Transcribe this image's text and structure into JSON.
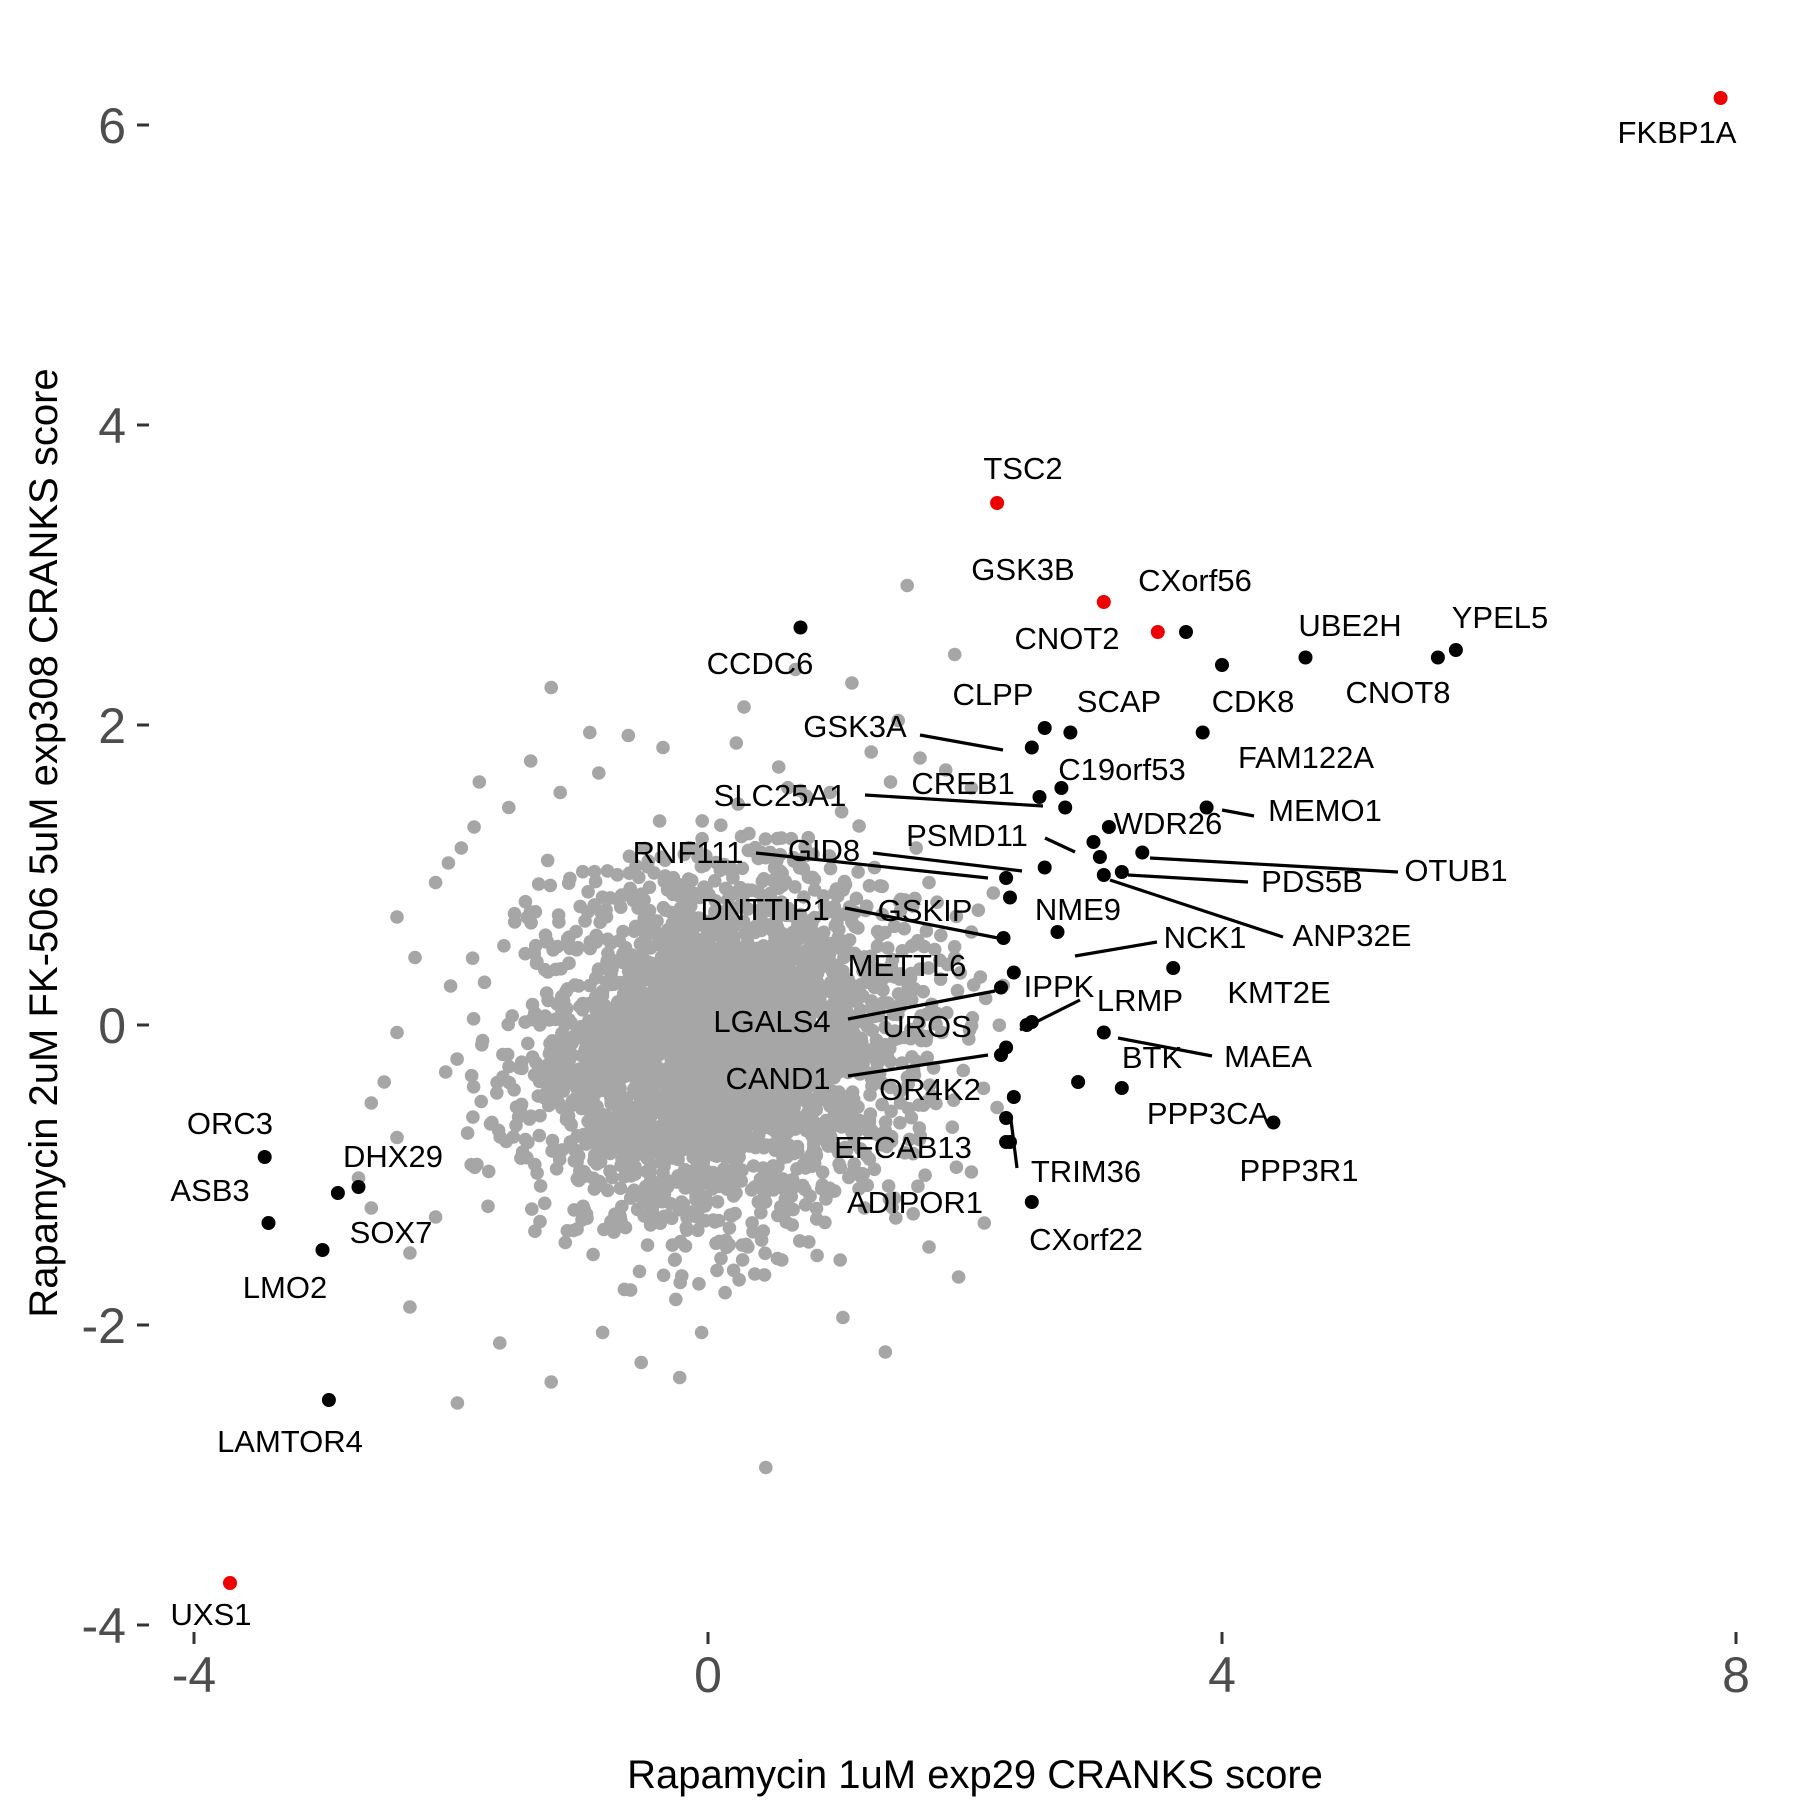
{
  "chart_data": {
    "type": "scatter",
    "title": "",
    "xlabel": "Rapamycin 1uM exp29 CRANKS score",
    "ylabel": "Rapamycin 2uM FK-506 5uM exp308 CRANKS score",
    "xlim": [
      -4.3,
      8.3
    ],
    "ylim": [
      -4.2,
      6.5
    ],
    "xticks": [
      -4,
      0,
      4,
      8
    ],
    "yticks": [
      -4,
      -2,
      0,
      2,
      4,
      6
    ],
    "xtick_labels": [
      "-4",
      "0",
      "4",
      "8"
    ],
    "ytick_labels": [
      "-4",
      "-2",
      "0",
      "2",
      "4",
      "6"
    ],
    "grid": false,
    "legend": "none",
    "colors": {
      "background_points": "#a6a6a6",
      "highlight": "#ee0000",
      "labeled": "#000000"
    },
    "background_cloud": {
      "note_count": "dense cloud of unlabeled genes",
      "center": [
        0.1,
        -0.15
      ],
      "outliers": [
        [
          1.55,
          2.93
        ],
        [
          1.92,
          2.47
        ],
        [
          0.68,
          2.37
        ],
        [
          -1.22,
          2.25
        ],
        [
          -0.62,
          1.93
        ],
        [
          -1.78,
          1.62
        ],
        [
          -1.38,
          1.76
        ],
        [
          1.48,
          2.03
        ],
        [
          1.27,
          1.82
        ],
        [
          1.65,
          1.78
        ],
        [
          1.85,
          1.7
        ],
        [
          2.05,
          1.58
        ],
        [
          1.42,
          1.62
        ],
        [
          1.62,
          1.18
        ],
        [
          1.72,
          0.95
        ],
        [
          2.05,
          0.62
        ],
        [
          2.12,
          0.32
        ],
        [
          2.25,
          -0.55
        ],
        [
          2.05,
          -0.98
        ],
        [
          2.15,
          -1.32
        ],
        [
          1.95,
          -1.68
        ],
        [
          1.38,
          -2.18
        ],
        [
          0.45,
          -2.95
        ],
        [
          -0.05,
          -2.05
        ],
        [
          -0.22,
          -2.35
        ],
        [
          -0.52,
          -2.25
        ],
        [
          -0.82,
          -2.05
        ],
        [
          -1.22,
          -2.38
        ],
        [
          -1.95,
          -2.52
        ],
        [
          -2.32,
          -1.88
        ],
        [
          -2.32,
          -1.52
        ],
        [
          -2.12,
          -1.28
        ],
        [
          -2.42,
          -0.75
        ],
        [
          -2.52,
          -0.38
        ],
        [
          -2.42,
          -0.05
        ],
        [
          -2.28,
          0.45
        ],
        [
          -2.42,
          0.72
        ],
        [
          -2.12,
          0.95
        ],
        [
          -1.92,
          1.18
        ],
        [
          -1.82,
          1.32
        ],
        [
          -1.55,
          1.45
        ],
        [
          -1.15,
          1.55
        ],
        [
          -0.85,
          1.68
        ],
        [
          -0.35,
          1.85
        ],
        [
          0.22,
          1.88
        ],
        [
          0.55,
          1.72
        ],
        [
          0.95,
          1.55
        ],
        [
          -2.62,
          -1.22
        ],
        [
          -2.72,
          -1.02
        ],
        [
          -2.02,
          1.08
        ],
        [
          1.82,
          -0.05
        ],
        [
          1.92,
          0.45
        ],
        [
          1.72,
          -1.48
        ],
        [
          1.05,
          -1.95
        ],
        [
          -1.62,
          -2.12
        ],
        [
          -2.62,
          -0.52
        ],
        [
          2.22,
          0.88
        ],
        [
          1.12,
          2.28
        ],
        [
          0.28,
          2.12
        ],
        [
          -0.92,
          1.95
        ]
      ]
    },
    "points": [
      {
        "label": "FKBP1A",
        "x": 7.88,
        "y": 6.18,
        "group": "highlight"
      },
      {
        "label": "TSC2",
        "x": 2.25,
        "y": 3.48,
        "group": "highlight"
      },
      {
        "label": "GSK3B",
        "x": 3.08,
        "y": 2.82,
        "group": "highlight"
      },
      {
        "label": "CXorf56",
        "x": 3.5,
        "y": 2.62,
        "group": "highlight"
      },
      {
        "label": "UXS1",
        "x": -3.72,
        "y": -3.72,
        "group": "highlight"
      },
      {
        "label": "CNOT2",
        "x": 3.72,
        "y": 2.62,
        "group": "labeled"
      },
      {
        "label": "CCDC6",
        "x": 0.72,
        "y": 2.65,
        "group": "labeled"
      },
      {
        "label": "UBE2H",
        "x": 4.65,
        "y": 2.45,
        "group": "labeled"
      },
      {
        "label": "YPEL5",
        "x": 5.82,
        "y": 2.5,
        "group": "labeled"
      },
      {
        "label": "CNOT8",
        "x": 5.68,
        "y": 2.45,
        "group": "labeled"
      },
      {
        "label": "CDK8",
        "x": 4.0,
        "y": 2.4,
        "group": "labeled"
      },
      {
        "label": "CLPP",
        "x": 2.62,
        "y": 1.98,
        "group": "labeled"
      },
      {
        "label": "SCAP",
        "x": 2.82,
        "y": 1.95,
        "group": "labeled"
      },
      {
        "label": "FAM122A",
        "x": 3.85,
        "y": 1.95,
        "group": "labeled"
      },
      {
        "label": "GSK3A",
        "x": 2.52,
        "y": 1.85,
        "group": "labeled"
      },
      {
        "label": "C19orf53",
        "x": 2.75,
        "y": 1.58,
        "group": "labeled"
      },
      {
        "label": "CREB1",
        "x": 2.58,
        "y": 1.52,
        "group": "labeled"
      },
      {
        "label": "SLC25A1",
        "x": 2.78,
        "y": 1.45,
        "group": "labeled"
      },
      {
        "label": "MEMO1",
        "x": 3.88,
        "y": 1.45,
        "group": "labeled"
      },
      {
        "label": "WDR26",
        "x": 3.12,
        "y": 1.32,
        "group": "labeled"
      },
      {
        "label": "PSMD11",
        "x": 3.0,
        "y": 1.22,
        "group": "labeled"
      },
      {
        "label": "OTUB1",
        "x": 3.38,
        "y": 1.15,
        "group": "labeled"
      },
      {
        "label": "GID8",
        "x": 3.05,
        "y": 1.12,
        "group": "labeled"
      },
      {
        "label": "RNF111",
        "x": 2.62,
        "y": 1.05,
        "group": "labeled"
      },
      {
        "label": "PDS5B",
        "x": 3.22,
        "y": 1.02,
        "group": "labeled"
      },
      {
        "label": "ANP32E",
        "x": 3.08,
        "y": 1.0,
        "group": "labeled"
      },
      {
        "label": "GSKIP",
        "x": 2.32,
        "y": 0.98,
        "group": "labeled"
      },
      {
        "label": "NME9",
        "x": 2.35,
        "y": 0.85,
        "group": "labeled"
      },
      {
        "label": "DNTTIP1",
        "x": 2.3,
        "y": 0.58,
        "group": "labeled"
      },
      {
        "label": "NCK1",
        "x": 2.72,
        "y": 0.62,
        "group": "labeled"
      },
      {
        "label": "KMT2E",
        "x": 3.62,
        "y": 0.38,
        "group": "labeled"
      },
      {
        "label": "METTL6",
        "x": 2.38,
        "y": 0.35,
        "group": "labeled"
      },
      {
        "label": "LGALS4",
        "x": 2.28,
        "y": 0.25,
        "group": "labeled"
      },
      {
        "label": "LRMP",
        "x": 2.52,
        "y": 0.02,
        "group": "labeled"
      },
      {
        "label": "IPPK",
        "x": 2.48,
        "y": 0.0,
        "group": "labeled"
      },
      {
        "label": "UROS",
        "x": 2.32,
        "y": -0.15,
        "group": "labeled"
      },
      {
        "label": "BTK",
        "x": 3.08,
        "y": -0.05,
        "group": "labeled"
      },
      {
        "label": "CAND1",
        "x": 2.28,
        "y": -0.2,
        "group": "labeled"
      },
      {
        "label": "MAEA",
        "x": 2.88,
        "y": -0.38,
        "group": "labeled"
      },
      {
        "label": "PPP3CA",
        "x": 3.22,
        "y": -0.42,
        "group": "labeled"
      },
      {
        "label": "OR4K2",
        "x": 2.38,
        "y": -0.48,
        "group": "labeled"
      },
      {
        "label": "PPP3R1",
        "x": 4.4,
        "y": -0.65,
        "group": "labeled"
      },
      {
        "label": "EFCAB13",
        "x": 2.32,
        "y": -0.62,
        "group": "labeled"
      },
      {
        "label": "ADIPOR1",
        "x": 2.32,
        "y": -0.78,
        "group": "labeled"
      },
      {
        "label": "TRIM36",
        "x": 2.35,
        "y": -0.78,
        "group": "labeled"
      },
      {
        "label": "CXorf22",
        "x": 2.52,
        "y": -1.18,
        "group": "labeled"
      },
      {
        "label": "ORC3",
        "x": -3.45,
        "y": -0.88,
        "group": "labeled"
      },
      {
        "label": "DHX29",
        "x": -2.72,
        "y": -1.08,
        "group": "labeled"
      },
      {
        "label": "SOX7",
        "x": -2.88,
        "y": -1.12,
        "group": "labeled"
      },
      {
        "label": "ASB3",
        "x": -3.42,
        "y": -1.32,
        "group": "labeled"
      },
      {
        "label": "LMO2",
        "x": -3.0,
        "y": -1.5,
        "group": "labeled"
      },
      {
        "label": "LAMTOR4",
        "x": -2.95,
        "y": -2.5,
        "group": "labeled"
      }
    ]
  }
}
